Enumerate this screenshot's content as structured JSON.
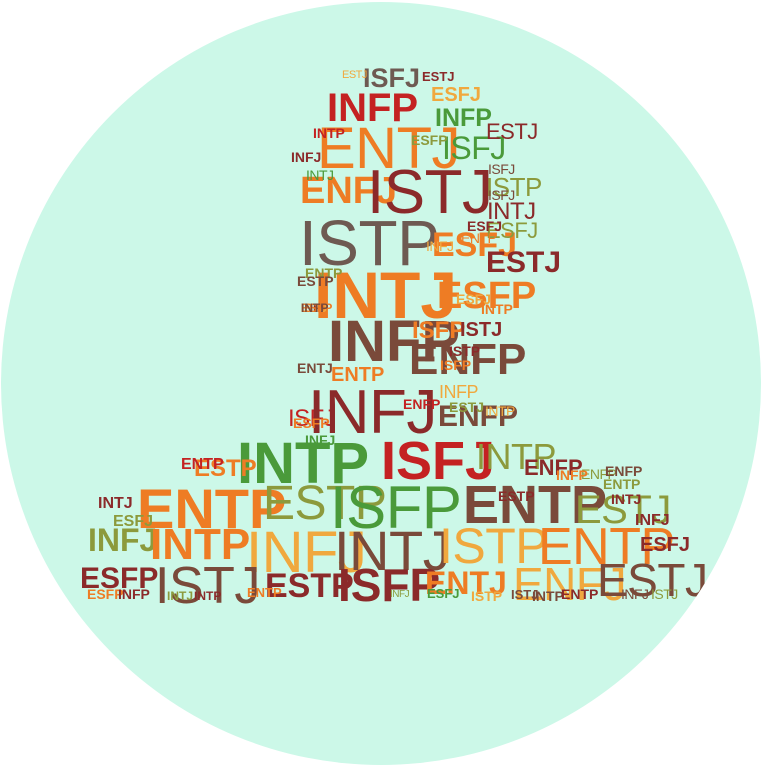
{
  "colors": {
    "circle_background": "#ccf8e8",
    "dark_red": "#8b2a2a",
    "red": "#c42222",
    "orange": "#ee7c24",
    "light_orange": "#f0a83e",
    "green": "#4a9a3a",
    "olive": "#8c9a3c",
    "brown": "#7a4a3a",
    "gray_brown": "#6e5a52"
  },
  "cloud": {
    "words": [
      {
        "text": "ISFJ",
        "color": "#6e5a52",
        "bold": true
      },
      {
        "text": "ESTJ",
        "color": "#8b2a2a",
        "bold": true
      },
      {
        "text": "ESTJ",
        "color": "#f0a83e",
        "bold": false
      },
      {
        "text": "INFP",
        "color": "#c42222",
        "bold": true
      },
      {
        "text": "ESFJ",
        "color": "#f0a83e",
        "bold": true
      },
      {
        "text": "ENTJ",
        "color": "#ee7c24",
        "bold": false
      },
      {
        "text": "INFP",
        "color": "#4a9a3a",
        "bold": true
      },
      {
        "text": "ISFJ",
        "color": "#4a9a3a",
        "bold": false
      },
      {
        "text": "ESTJ",
        "color": "#8b2a2a",
        "bold": false
      },
      {
        "text": "ENFJ",
        "color": "#ee7c24",
        "bold": true
      },
      {
        "text": "ISTJ",
        "color": "#8b2a2a",
        "bold": false
      },
      {
        "text": "ISTP",
        "color": "#8c9a3c",
        "bold": false
      },
      {
        "text": "INTJ",
        "color": "#8b2a2a",
        "bold": false
      },
      {
        "text": "ISTP",
        "color": "#6e5a52",
        "bold": false
      },
      {
        "text": "ESFJ",
        "color": "#ee7c24",
        "bold": true
      },
      {
        "text": "ESFJ",
        "color": "#8c9a3c",
        "bold": false
      },
      {
        "text": "ESTJ",
        "color": "#8b2a2a",
        "bold": true
      },
      {
        "text": "INTJ",
        "color": "#ee7c24",
        "bold": true
      },
      {
        "text": "ESFP",
        "color": "#ee7c24",
        "bold": true
      },
      {
        "text": "INFP",
        "color": "#7a4a3a",
        "bold": true
      },
      {
        "text": "ISFP",
        "color": "#ee7c24",
        "bold": true
      },
      {
        "text": "ISTJ",
        "color": "#8b2a2a",
        "bold": true
      },
      {
        "text": "ENFP",
        "color": "#7a4a3a",
        "bold": true
      },
      {
        "text": "ENTP",
        "color": "#ee7c24",
        "bold": true
      },
      {
        "text": "ISFJ",
        "color": "#c42222",
        "bold": false
      },
      {
        "text": "INFJ",
        "color": "#8b2a2a",
        "bold": false
      },
      {
        "text": "ENFP",
        "color": "#7a4a3a",
        "bold": true
      },
      {
        "text": "INFP",
        "color": "#f0a83e",
        "bold": false
      },
      {
        "text": "INTP",
        "color": "#4a9a3a",
        "bold": true
      },
      {
        "text": "ISFJ",
        "color": "#c42222",
        "bold": true
      },
      {
        "text": "INTP",
        "color": "#8c9a3c",
        "bold": false
      },
      {
        "text": "ENFP",
        "color": "#8b2a2a",
        "bold": true
      },
      {
        "text": "ESTP",
        "color": "#ee7c24",
        "bold": true
      },
      {
        "text": "ENTP",
        "color": "#c42222",
        "bold": true
      },
      {
        "text": "ENTP",
        "color": "#ee7c24",
        "bold": true
      },
      {
        "text": "ESTP",
        "color": "#8c9a3c",
        "bold": false
      },
      {
        "text": "ISFP",
        "color": "#4a9a3a",
        "bold": false
      },
      {
        "text": "ENTP",
        "color": "#7a4a3a",
        "bold": true
      },
      {
        "text": "ESTJ",
        "color": "#8c9a3c",
        "bold": false
      },
      {
        "text": "INTJ",
        "color": "#8b2a2a",
        "bold": true
      },
      {
        "text": "ESFJ",
        "color": "#8c9a3c",
        "bold": true
      },
      {
        "text": "INFJ",
        "color": "#8c9a3c",
        "bold": true
      },
      {
        "text": "INTP",
        "color": "#ee7c24",
        "bold": true
      },
      {
        "text": "INFJ",
        "color": "#f0a83e",
        "bold": false
      },
      {
        "text": "INTJ",
        "color": "#7a4a3a",
        "bold": false
      },
      {
        "text": "ISTP",
        "color": "#f0a83e",
        "bold": false
      },
      {
        "text": "ENTP",
        "color": "#ee7c24",
        "bold": false
      },
      {
        "text": "ESFJ",
        "color": "#8b2a2a",
        "bold": true
      },
      {
        "text": "ESFP",
        "color": "#8b2a2a",
        "bold": true
      },
      {
        "text": "ISTJ",
        "color": "#7a4a3a",
        "bold": false
      },
      {
        "text": "ESTP",
        "color": "#8b2a2a",
        "bold": true
      },
      {
        "text": "ISFP",
        "color": "#8b2a2a",
        "bold": true
      },
      {
        "text": "ENTJ",
        "color": "#ee7c24",
        "bold": true
      },
      {
        "text": "ENFJ",
        "color": "#f0a83e",
        "bold": false
      },
      {
        "text": "ESTJ",
        "color": "#7a4a3a",
        "bold": false
      },
      {
        "text": "INFJ",
        "color": "#8b2a2a",
        "bold": true
      },
      {
        "text": "ESFP",
        "color": "#ee7c24",
        "bold": true
      },
      {
        "text": "INFP",
        "color": "#8b2a2a",
        "bold": true
      },
      {
        "text": "INTJ",
        "color": "#8c9a3c",
        "bold": true
      },
      {
        "text": "INTP",
        "color": "#8b2a2a",
        "bold": true
      },
      {
        "text": "ENTP",
        "color": "#ee7c24",
        "bold": true
      },
      {
        "text": "INFJ",
        "color": "#8c9a3c",
        "bold": false
      },
      {
        "text": "ESFJ",
        "color": "#4a9a3a",
        "bold": true
      },
      {
        "text": "ISTJ",
        "color": "#7a4a3a",
        "bold": true
      },
      {
        "text": "INFJ",
        "color": "#4a9a3a",
        "bold": true
      },
      {
        "text": "ENFP",
        "color": "#c42222",
        "bold": true
      },
      {
        "text": "ENTJ",
        "color": "#7a4a3a",
        "bold": true
      },
      {
        "text": "ESTJ",
        "color": "#8c9a3c",
        "bold": true
      },
      {
        "text": "ISFP",
        "color": "#ee7c24",
        "bold": true
      },
      {
        "text": "ISTP",
        "color": "#8b2a2a",
        "bold": true
      },
      {
        "text": "ESFJ",
        "color": "#f0a83e",
        "bold": true
      },
      {
        "text": "INTP",
        "color": "#ee7c24",
        "bold": true
      },
      {
        "text": "ENTP",
        "color": "#8c9a3c",
        "bold": true
      },
      {
        "text": "ESTP",
        "color": "#7a4a3a",
        "bold": true
      },
      {
        "text": "INFJ",
        "color": "#f0a83e",
        "bold": false
      },
      {
        "text": "ENTP",
        "color": "#ee7c24",
        "bold": false
      },
      {
        "text": "ESFJ",
        "color": "#8b2a2a",
        "bold": true
      },
      {
        "text": "INTJ",
        "color": "#4a9a3a",
        "bold": false
      },
      {
        "text": "ESFP",
        "color": "#8c9a3c",
        "bold": true
      },
      {
        "text": "ISFJ",
        "color": "#7a4a3a",
        "bold": false
      },
      {
        "text": "INTP",
        "color": "#c42222",
        "bold": true
      },
      {
        "text": "INFJ",
        "color": "#8b2a2a",
        "bold": true
      },
      {
        "text": "ISFJ",
        "color": "#7a4a3a",
        "bold": false
      },
      {
        "text": "ESFP",
        "color": "#ee7c24",
        "bold": true
      },
      {
        "text": "INTP",
        "color": "#f0a83e",
        "bold": false
      },
      {
        "text": "ESTP",
        "color": "#8b2a2a",
        "bold": true
      },
      {
        "text": "ENTP",
        "color": "#8c9a3c",
        "bold": true
      },
      {
        "text": "ENFP",
        "color": "#8c9a3c",
        "bold": false
      },
      {
        "text": "INFP",
        "color": "#ee7c24",
        "bold": true
      },
      {
        "text": "ENFP",
        "color": "#7a4a3a",
        "bold": true
      },
      {
        "text": "INTJ",
        "color": "#8b2a2a",
        "bold": true
      },
      {
        "text": "INTP",
        "color": "#7a4a3a",
        "bold": true
      },
      {
        "text": "ISTP",
        "color": "#f0a83e",
        "bold": true
      },
      {
        "text": "ENTP",
        "color": "#8b2a2a",
        "bold": true
      },
      {
        "text": "INFJ",
        "color": "#7a4a3a",
        "bold": false
      },
      {
        "text": "ISTJ",
        "color": "#8c9a3c",
        "bold": false
      },
      {
        "text": "ISTP",
        "color": "#ee7c24",
        "bold": true
      },
      {
        "text": "INFP",
        "color": "#8b2a2a",
        "bold": true
      },
      {
        "text": "ESFP",
        "color": "#ee7c24",
        "bold": true
      },
      {
        "text": "INTJ",
        "color": "#f0a83e",
        "bold": true
      },
      {
        "text": "INTP",
        "color": "#7a4a3a",
        "bold": true
      }
    ]
  }
}
